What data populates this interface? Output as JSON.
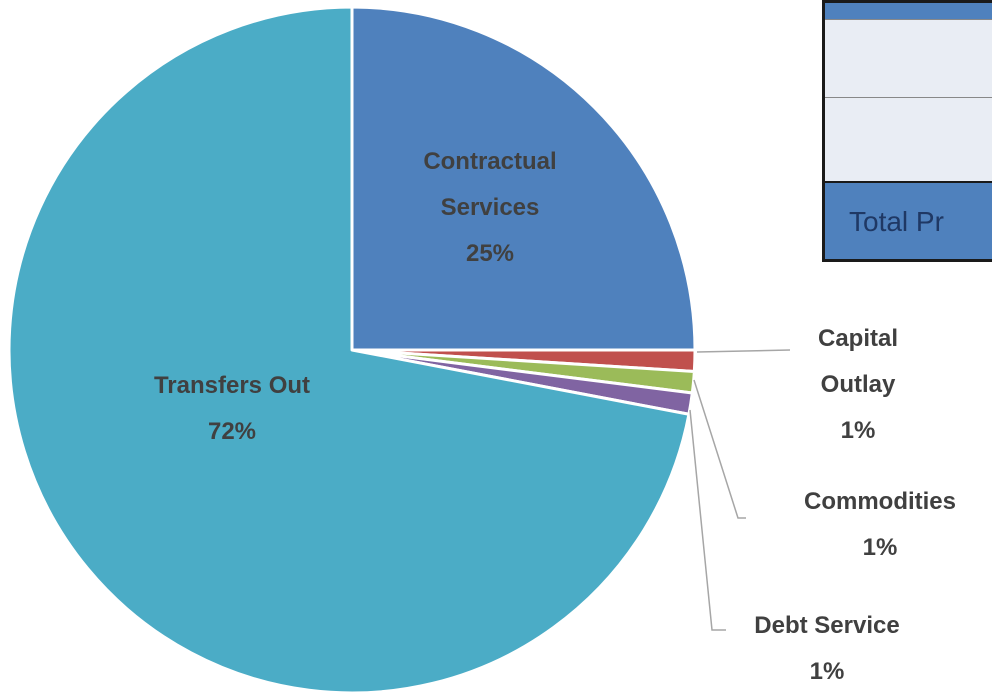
{
  "chart_data": {
    "type": "pie",
    "categories": [
      "Contractual Services",
      "Capital Outlay",
      "Commodities",
      "Debt Service",
      "Transfers Out"
    ],
    "values": [
      25,
      1,
      1,
      1,
      72
    ],
    "value_labels": [
      "25%",
      "1%",
      "1%",
      "1%",
      "72%"
    ],
    "colors": [
      "#4f81bd",
      "#c0504d",
      "#9bbb59",
      "#8064a2",
      "#4bacc6"
    ]
  },
  "table": {
    "total_label": "Total Pr"
  }
}
